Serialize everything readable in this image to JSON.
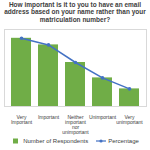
{
  "chart_data": {
    "type": "bar",
    "title": "How important is it to you to have an email address based on your name rather than your matriculation number?",
    "categories": [
      "Very Important",
      "Important",
      "Neither important nor unimportant",
      "Unimportant",
      "Very unimportant"
    ],
    "series": [
      {
        "name": "Number of Respondents",
        "type": "bar",
        "color": "#70ad47",
        "values": [
          124,
          112,
          80,
          52,
          32
        ]
      },
      {
        "name": "Percentage",
        "type": "line",
        "color": "#4472c4",
        "marker": "circle",
        "axis": "y2",
        "values": [
          31,
          28,
          20,
          13,
          8
        ]
      }
    ],
    "ylim": [
      0,
      140
    ],
    "y2lim": [
      0,
      35
    ],
    "tick_labels": "x",
    "legend": "bottom"
  }
}
